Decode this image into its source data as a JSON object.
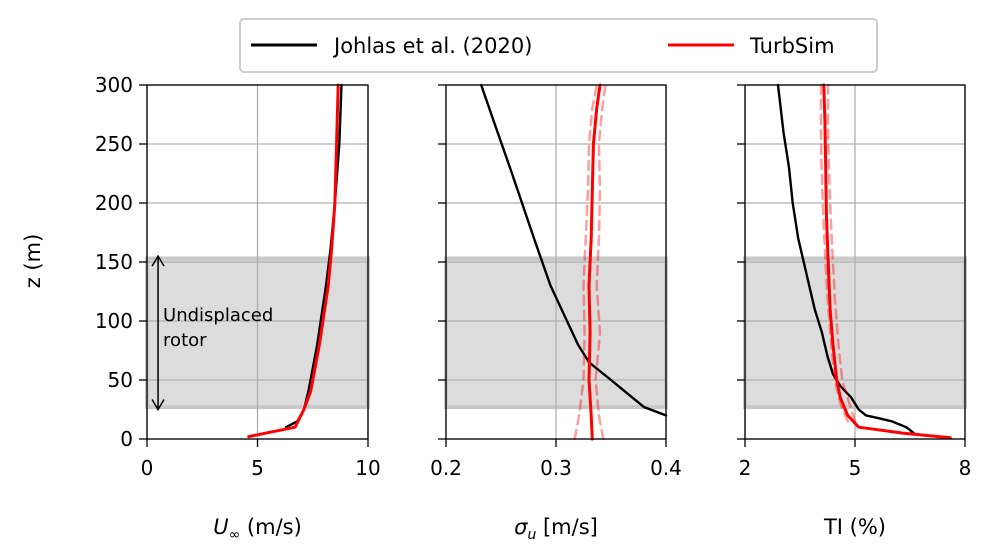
{
  "legend": {
    "entries": [
      {
        "label": "Johlas et al. (2020)",
        "color": "#000000"
      },
      {
        "label": "TurbSim",
        "color": "#ff0000"
      }
    ]
  },
  "colors": {
    "black": "#000000",
    "red": "#ff0000",
    "shade": "#dcdcdc",
    "grid": "#b0b0b0"
  },
  "chart_data": [
    {
      "type": "line",
      "panel": "wind-speed",
      "xlabel_sym": "U",
      "xlabel_sub": "∞",
      "xlabel_rest": " (m/s)",
      "ylabel": "z (m)",
      "xlim": [
        0,
        10
      ],
      "ylim": [
        0,
        300
      ],
      "xticks": [
        0,
        5,
        10
      ],
      "xtick_labels": [
        "0",
        "5",
        "10"
      ],
      "yticks": [
        0,
        50,
        100,
        150,
        200,
        250,
        300
      ],
      "ytick_labels": [
        "0",
        "50",
        "100",
        "150",
        "200",
        "250",
        "300"
      ],
      "shaded_band": [
        27,
        153
      ],
      "annotation": {
        "lines": [
          "Undisplaced",
          "rotor"
        ],
        "x": 0.5,
        "y_range": [
          25,
          155
        ]
      },
      "series": [
        {
          "name": "Johlas et al. (2020)",
          "color": "#000000",
          "width": 2.4,
          "x": [
            6.3,
            6.8,
            7.1,
            7.3,
            7.5,
            7.7,
            7.9,
            8.1,
            8.3,
            8.5,
            8.7,
            8.8
          ],
          "y": [
            10,
            15,
            25,
            40,
            60,
            80,
            105,
            130,
            160,
            200,
            250,
            300
          ]
        },
        {
          "name": "TurbSim",
          "color": "#ff0000",
          "width": 3,
          "x": [
            4.6,
            6.7,
            7.1,
            7.4,
            7.6,
            7.8,
            8.0,
            8.2,
            8.35,
            8.5,
            8.65
          ],
          "y": [
            2,
            10,
            25,
            40,
            60,
            80,
            105,
            130,
            160,
            200,
            300
          ]
        }
      ]
    },
    {
      "type": "line",
      "panel": "sigma-u",
      "xlabel_sym": "σ",
      "xlabel_sub": "u",
      "xlabel_rest": " [m/s]",
      "xlim": [
        0.2,
        0.4
      ],
      "ylim": [
        0,
        300
      ],
      "xticks": [
        0.2,
        0.3,
        0.4
      ],
      "xtick_labels": [
        "0.2",
        "0.3",
        "0.4"
      ],
      "yticks": [
        0,
        50,
        100,
        150,
        200,
        250,
        300
      ],
      "shaded_band": [
        27,
        153
      ],
      "series": [
        {
          "name": "Johlas et al. (2020)",
          "color": "#000000",
          "width": 2.4,
          "x": [
            0.4,
            0.38,
            0.35,
            0.33,
            0.32,
            0.31,
            0.295,
            0.28,
            0.26,
            0.245,
            0.232
          ],
          "y": [
            20,
            27,
            50,
            65,
            80,
            100,
            130,
            170,
            225,
            265,
            300
          ]
        },
        {
          "name": "TurbSim",
          "color": "#ff0000",
          "width": 3,
          "x": [
            0.333,
            0.332,
            0.33,
            0.331,
            0.33,
            0.332,
            0.333,
            0.334,
            0.337,
            0.34
          ],
          "y": [
            0,
            20,
            50,
            90,
            130,
            170,
            210,
            250,
            280,
            300
          ]
        },
        {
          "name": "TurbSim band low",
          "color": "#ff0000",
          "dashed": true,
          "width": 2.5,
          "x": [
            0.317,
            0.321,
            0.325,
            0.326,
            0.325,
            0.327,
            0.329,
            0.33,
            0.333,
            0.337
          ],
          "y": [
            0,
            20,
            50,
            90,
            130,
            170,
            210,
            250,
            280,
            300
          ]
        },
        {
          "name": "TurbSim band high",
          "color": "#ff0000",
          "dashed": true,
          "width": 2.5,
          "x": [
            0.343,
            0.339,
            0.336,
            0.34,
            0.337,
            0.339,
            0.34,
            0.339,
            0.342,
            0.345
          ],
          "y": [
            0,
            20,
            50,
            90,
            130,
            170,
            210,
            250,
            280,
            300
          ]
        }
      ]
    },
    {
      "type": "line",
      "panel": "turbulence-intensity",
      "xlabel_sym": "",
      "xlabel_sub": "",
      "xlabel_rest": "TI (%)",
      "xlim": [
        2,
        8
      ],
      "ylim": [
        0,
        300
      ],
      "xticks": [
        2,
        5,
        8
      ],
      "xtick_labels": [
        "2",
        "5",
        "8"
      ],
      "yticks": [
        0,
        50,
        100,
        150,
        200,
        250,
        300
      ],
      "shaded_band": [
        27,
        153
      ],
      "series": [
        {
          "name": "Johlas et al. (2020)",
          "color": "#000000",
          "width": 2.4,
          "x": [
            6.6,
            6.4,
            6.0,
            5.6,
            5.3,
            5.1,
            4.9,
            4.6,
            4.4,
            4.25,
            4.1,
            3.9,
            3.75,
            3.6,
            3.45,
            3.3,
            3.2,
            3.05,
            2.9
          ],
          "y": [
            5,
            10,
            15,
            18,
            20,
            25,
            35,
            45,
            55,
            70,
            90,
            110,
            130,
            150,
            170,
            200,
            230,
            260,
            300
          ]
        },
        {
          "name": "TurbSim",
          "color": "#ff0000",
          "width": 3,
          "x": [
            7.6,
            6.3,
            5.1,
            4.8,
            4.6,
            4.5,
            4.4,
            4.32,
            4.27,
            4.22,
            4.2,
            4.18,
            4.15
          ],
          "y": [
            1,
            5,
            10,
            20,
            35,
            50,
            80,
            110,
            150,
            190,
            230,
            270,
            300
          ]
        },
        {
          "name": "TurbSim band low",
          "color": "#ff0000",
          "dashed": true,
          "width": 2.5,
          "x": [
            4.8,
            4.6,
            4.45,
            4.35,
            4.25,
            4.18,
            4.12,
            4.08,
            4.07,
            4.07
          ],
          "y": [
            15,
            30,
            50,
            80,
            120,
            160,
            200,
            240,
            270,
            300
          ]
        },
        {
          "name": "TurbSim band high",
          "color": "#ff0000",
          "dashed": true,
          "width": 2.5,
          "x": [
            5.0,
            4.85,
            4.65,
            4.55,
            4.45,
            4.38,
            4.32,
            4.28,
            4.26,
            4.27
          ],
          "y": [
            15,
            30,
            50,
            80,
            120,
            160,
            200,
            240,
            270,
            300
          ]
        }
      ]
    }
  ]
}
